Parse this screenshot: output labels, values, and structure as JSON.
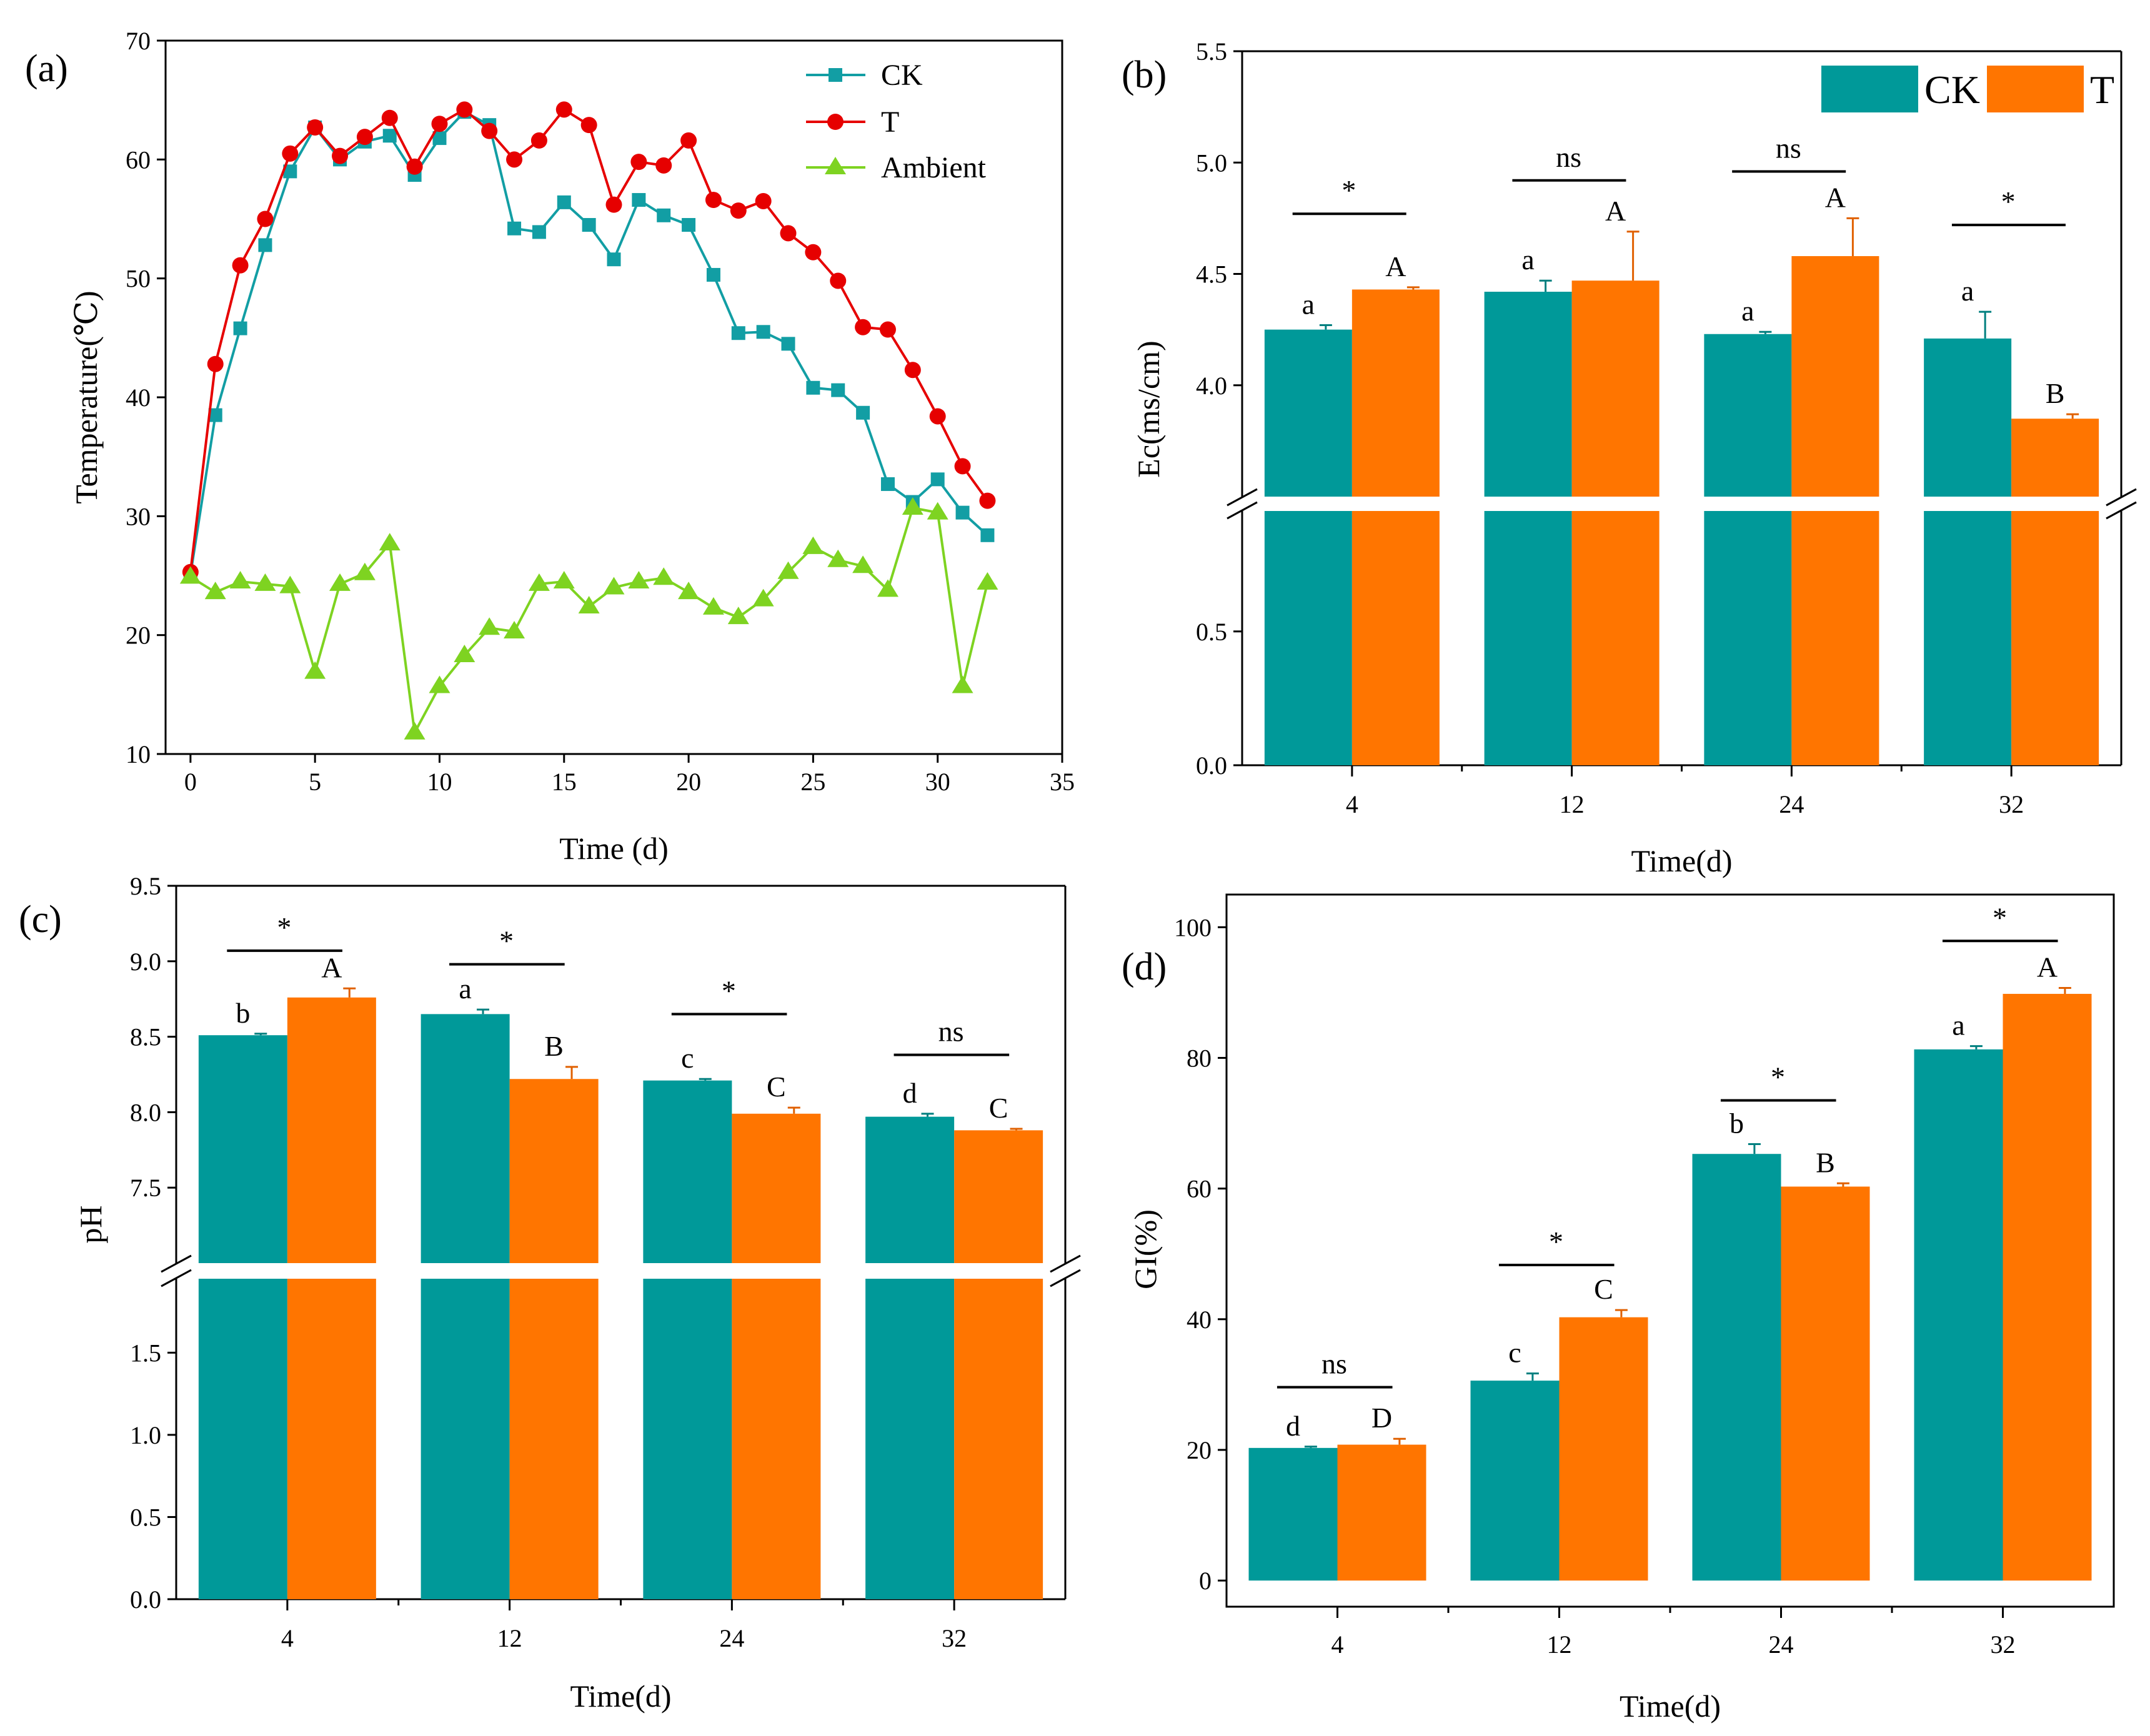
{
  "colors": {
    "ck": "#009999",
    "t": "#ff7500",
    "t_line": "#e60000",
    "ambient": "#7ed321",
    "axis": "#000000"
  },
  "chart_data": [
    {
      "id": "a",
      "type": "line",
      "panel_label": "(a)",
      "xlabel": "Time (d)",
      "ylabel": "Temperature(℃)",
      "xlim": [
        -1,
        35
      ],
      "ylim": [
        10,
        70
      ],
      "xticks": [
        0,
        5,
        10,
        15,
        20,
        25,
        30,
        35
      ],
      "yticks": [
        10,
        20,
        30,
        40,
        50,
        60,
        70
      ],
      "legend_position": "top-right",
      "x": [
        0,
        1,
        2,
        3,
        4,
        5,
        6,
        7,
        8,
        9,
        10,
        11,
        12,
        13,
        14,
        15,
        16,
        17,
        18,
        19,
        20,
        21,
        22,
        23,
        24,
        25,
        26,
        27,
        28,
        29,
        30,
        31,
        32
      ],
      "series": [
        {
          "name": "CK",
          "marker": "square",
          "color": "#129ea4",
          "values": [
            25.1,
            38.5,
            45.8,
            52.8,
            59.0,
            62.7,
            60.0,
            61.5,
            62.0,
            58.7,
            61.8,
            64.0,
            62.9,
            54.2,
            53.9,
            56.4,
            54.5,
            51.6,
            56.6,
            55.3,
            54.5,
            50.3,
            45.4,
            45.5,
            44.5,
            40.8,
            40.6,
            38.7,
            32.7,
            31.2,
            33.1,
            30.3,
            28.4
          ]
        },
        {
          "name": "T",
          "marker": "circle",
          "color": "#e60000",
          "values": [
            25.3,
            42.8,
            51.1,
            55.0,
            60.5,
            62.7,
            60.3,
            61.9,
            63.5,
            59.4,
            63.0,
            64.2,
            62.4,
            60.0,
            61.6,
            64.2,
            62.9,
            56.2,
            59.8,
            59.5,
            61.6,
            56.6,
            55.7,
            56.5,
            53.8,
            52.2,
            49.8,
            45.9,
            45.7,
            42.3,
            38.4,
            34.2,
            31.3
          ]
        },
        {
          "name": "Ambient",
          "marker": "triangle",
          "color": "#7ed321",
          "values": [
            24.9,
            23.6,
            24.5,
            24.3,
            24.1,
            16.9,
            24.3,
            25.2,
            27.7,
            11.8,
            15.7,
            18.3,
            20.6,
            20.3,
            24.3,
            24.5,
            22.4,
            24.0,
            24.5,
            24.8,
            23.6,
            22.3,
            21.5,
            23.0,
            25.3,
            27.4,
            26.3,
            25.8,
            23.8,
            30.7,
            30.3,
            15.7,
            24.4
          ]
        }
      ]
    },
    {
      "id": "b",
      "type": "bar",
      "panel_label": "(b)",
      "xlabel": "Time(d)",
      "ylabel": "Ec(ms/cm)",
      "categories": [
        "4",
        "12",
        "24",
        "32"
      ],
      "axis_break": {
        "lower": [
          0,
          0.95
        ],
        "upper": [
          3.5,
          5.5
        ]
      },
      "yticks_lower": [
        0.0,
        0.5
      ],
      "yticks_upper": [
        4.0,
        4.5,
        5.0,
        5.5
      ],
      "legend_position": "top-right",
      "series": [
        {
          "name": "CK",
          "color": "#009999",
          "values": [
            4.25,
            4.42,
            4.23,
            4.21
          ],
          "errors": [
            0.02,
            0.05,
            0.01,
            0.12
          ],
          "letters": [
            "a",
            "a",
            "a",
            "a"
          ]
        },
        {
          "name": "T",
          "color": "#ff7500",
          "values": [
            4.43,
            4.47,
            4.58,
            3.85
          ],
          "errors": [
            0.01,
            0.22,
            0.17,
            0.02
          ],
          "letters": [
            "A",
            "A",
            "A",
            "B"
          ]
        }
      ],
      "significance": [
        {
          "label": "*",
          "y": 4.77
        },
        {
          "label": "ns",
          "y": 4.92
        },
        {
          "label": "ns",
          "y": 4.96
        },
        {
          "label": "*",
          "y": 4.72
        }
      ]
    },
    {
      "id": "c",
      "type": "bar",
      "panel_label": "(c)",
      "xlabel": "Time(d)",
      "ylabel": "pH",
      "categories": [
        "4",
        "12",
        "24",
        "32"
      ],
      "axis_break": {
        "lower": [
          0,
          1.95
        ],
        "upper": [
          7.0,
          9.5
        ]
      },
      "yticks_lower": [
        0.0,
        0.5,
        1.0,
        1.5
      ],
      "yticks_upper": [
        7.5,
        8.0,
        8.5,
        9.0,
        9.5
      ],
      "series": [
        {
          "name": "CK",
          "color": "#009999",
          "values": [
            8.51,
            8.65,
            8.21,
            7.97
          ],
          "errors": [
            0.01,
            0.03,
            0.01,
            0.02
          ],
          "letters": [
            "b",
            "a",
            "c",
            "d"
          ]
        },
        {
          "name": "T",
          "color": "#ff7500",
          "values": [
            8.76,
            8.22,
            7.99,
            7.88
          ],
          "errors": [
            0.06,
            0.08,
            0.04,
            0.01
          ],
          "letters": [
            "A",
            "B",
            "C",
            "C"
          ]
        }
      ],
      "significance": [
        {
          "label": "*",
          "y": 9.07
        },
        {
          "label": "*",
          "y": 8.98
        },
        {
          "label": "*",
          "y": 8.65
        },
        {
          "label": "ns",
          "y": 8.38
        }
      ]
    },
    {
      "id": "d",
      "type": "bar",
      "panel_label": "(d)",
      "xlabel": "Time(d)",
      "ylabel": "GI(%)",
      "categories": [
        "4",
        "12",
        "24",
        "32"
      ],
      "ylim": [
        -4,
        105
      ],
      "yticks": [
        0,
        20,
        40,
        60,
        80,
        100
      ],
      "series": [
        {
          "name": "CK",
          "color": "#009999",
          "values": [
            20.3,
            30.6,
            65.3,
            81.3
          ],
          "errors": [
            0.2,
            1.1,
            1.5,
            0.5
          ],
          "letters": [
            "d",
            "c",
            "b",
            "a"
          ]
        },
        {
          "name": "T",
          "color": "#ff7500",
          "values": [
            20.8,
            40.3,
            60.3,
            89.8
          ],
          "errors": [
            0.9,
            1.1,
            0.5,
            0.9
          ],
          "letters": [
            "D",
            "C",
            "B",
            "A"
          ]
        }
      ],
      "significance": [
        {
          "label": "ns",
          "y": 29.6
        },
        {
          "label": "*",
          "y": 48.3
        },
        {
          "label": "*",
          "y": 73.5
        },
        {
          "label": "*",
          "y": 97.9
        }
      ]
    }
  ]
}
